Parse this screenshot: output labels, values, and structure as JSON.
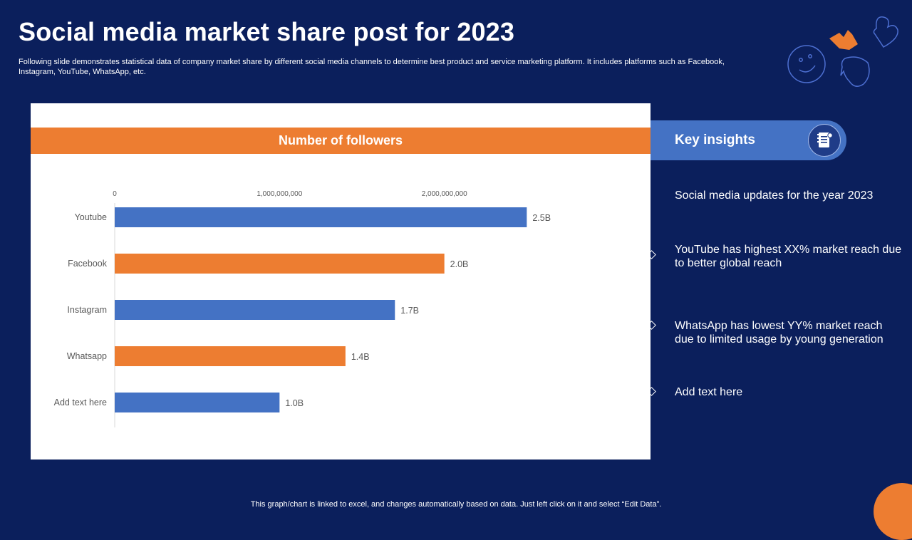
{
  "slide": {
    "title": "Social media market share post for 2023",
    "subtitle": "Following slide demonstrates statistical data of company market share by different social media channels to determine best product and service marketing platform. It includes platforms such as Facebook, Instagram, YouTube, WhatsApp, etc.",
    "footer": "This graph/chart is linked to excel,  and changes automatically based on data. Just left click on it and select “Edit Data”."
  },
  "colors": {
    "background": "#0b1f5c",
    "blue": "#4472c4",
    "orange": "#ed7d31"
  },
  "chart_data": {
    "type": "bar",
    "orientation": "horizontal",
    "title": "Number of followers",
    "categories": [
      "Youtube",
      "Facebook",
      "Instagram",
      "Whatsapp",
      "Add text here"
    ],
    "values": [
      2500000000,
      2000000000,
      1700000000,
      1400000000,
      1000000000
    ],
    "data_labels": [
      "2.5B",
      "2.0B",
      "1.7B",
      "1.4B",
      "1.0B"
    ],
    "bar_colors": [
      "#4472c4",
      "#ed7d31",
      "#4472c4",
      "#ed7d31",
      "#4472c4"
    ],
    "x_ticks": [
      0,
      1000000000,
      2000000000
    ],
    "x_tick_labels": [
      "0",
      "1,000,000,000",
      "2,000,000,000"
    ],
    "xlim": [
      0,
      3000000000
    ],
    "grid": false,
    "legend": "none"
  },
  "insights": {
    "title": "Key insights",
    "icon": "notebook-icon",
    "heading": "Social media updates for the year 2023",
    "items": [
      "YouTube  has highest XX% market reach due to better global reach",
      "WhatsApp has lowest YY%  market reach due to limited  usage by young generation",
      "Add text here"
    ]
  }
}
